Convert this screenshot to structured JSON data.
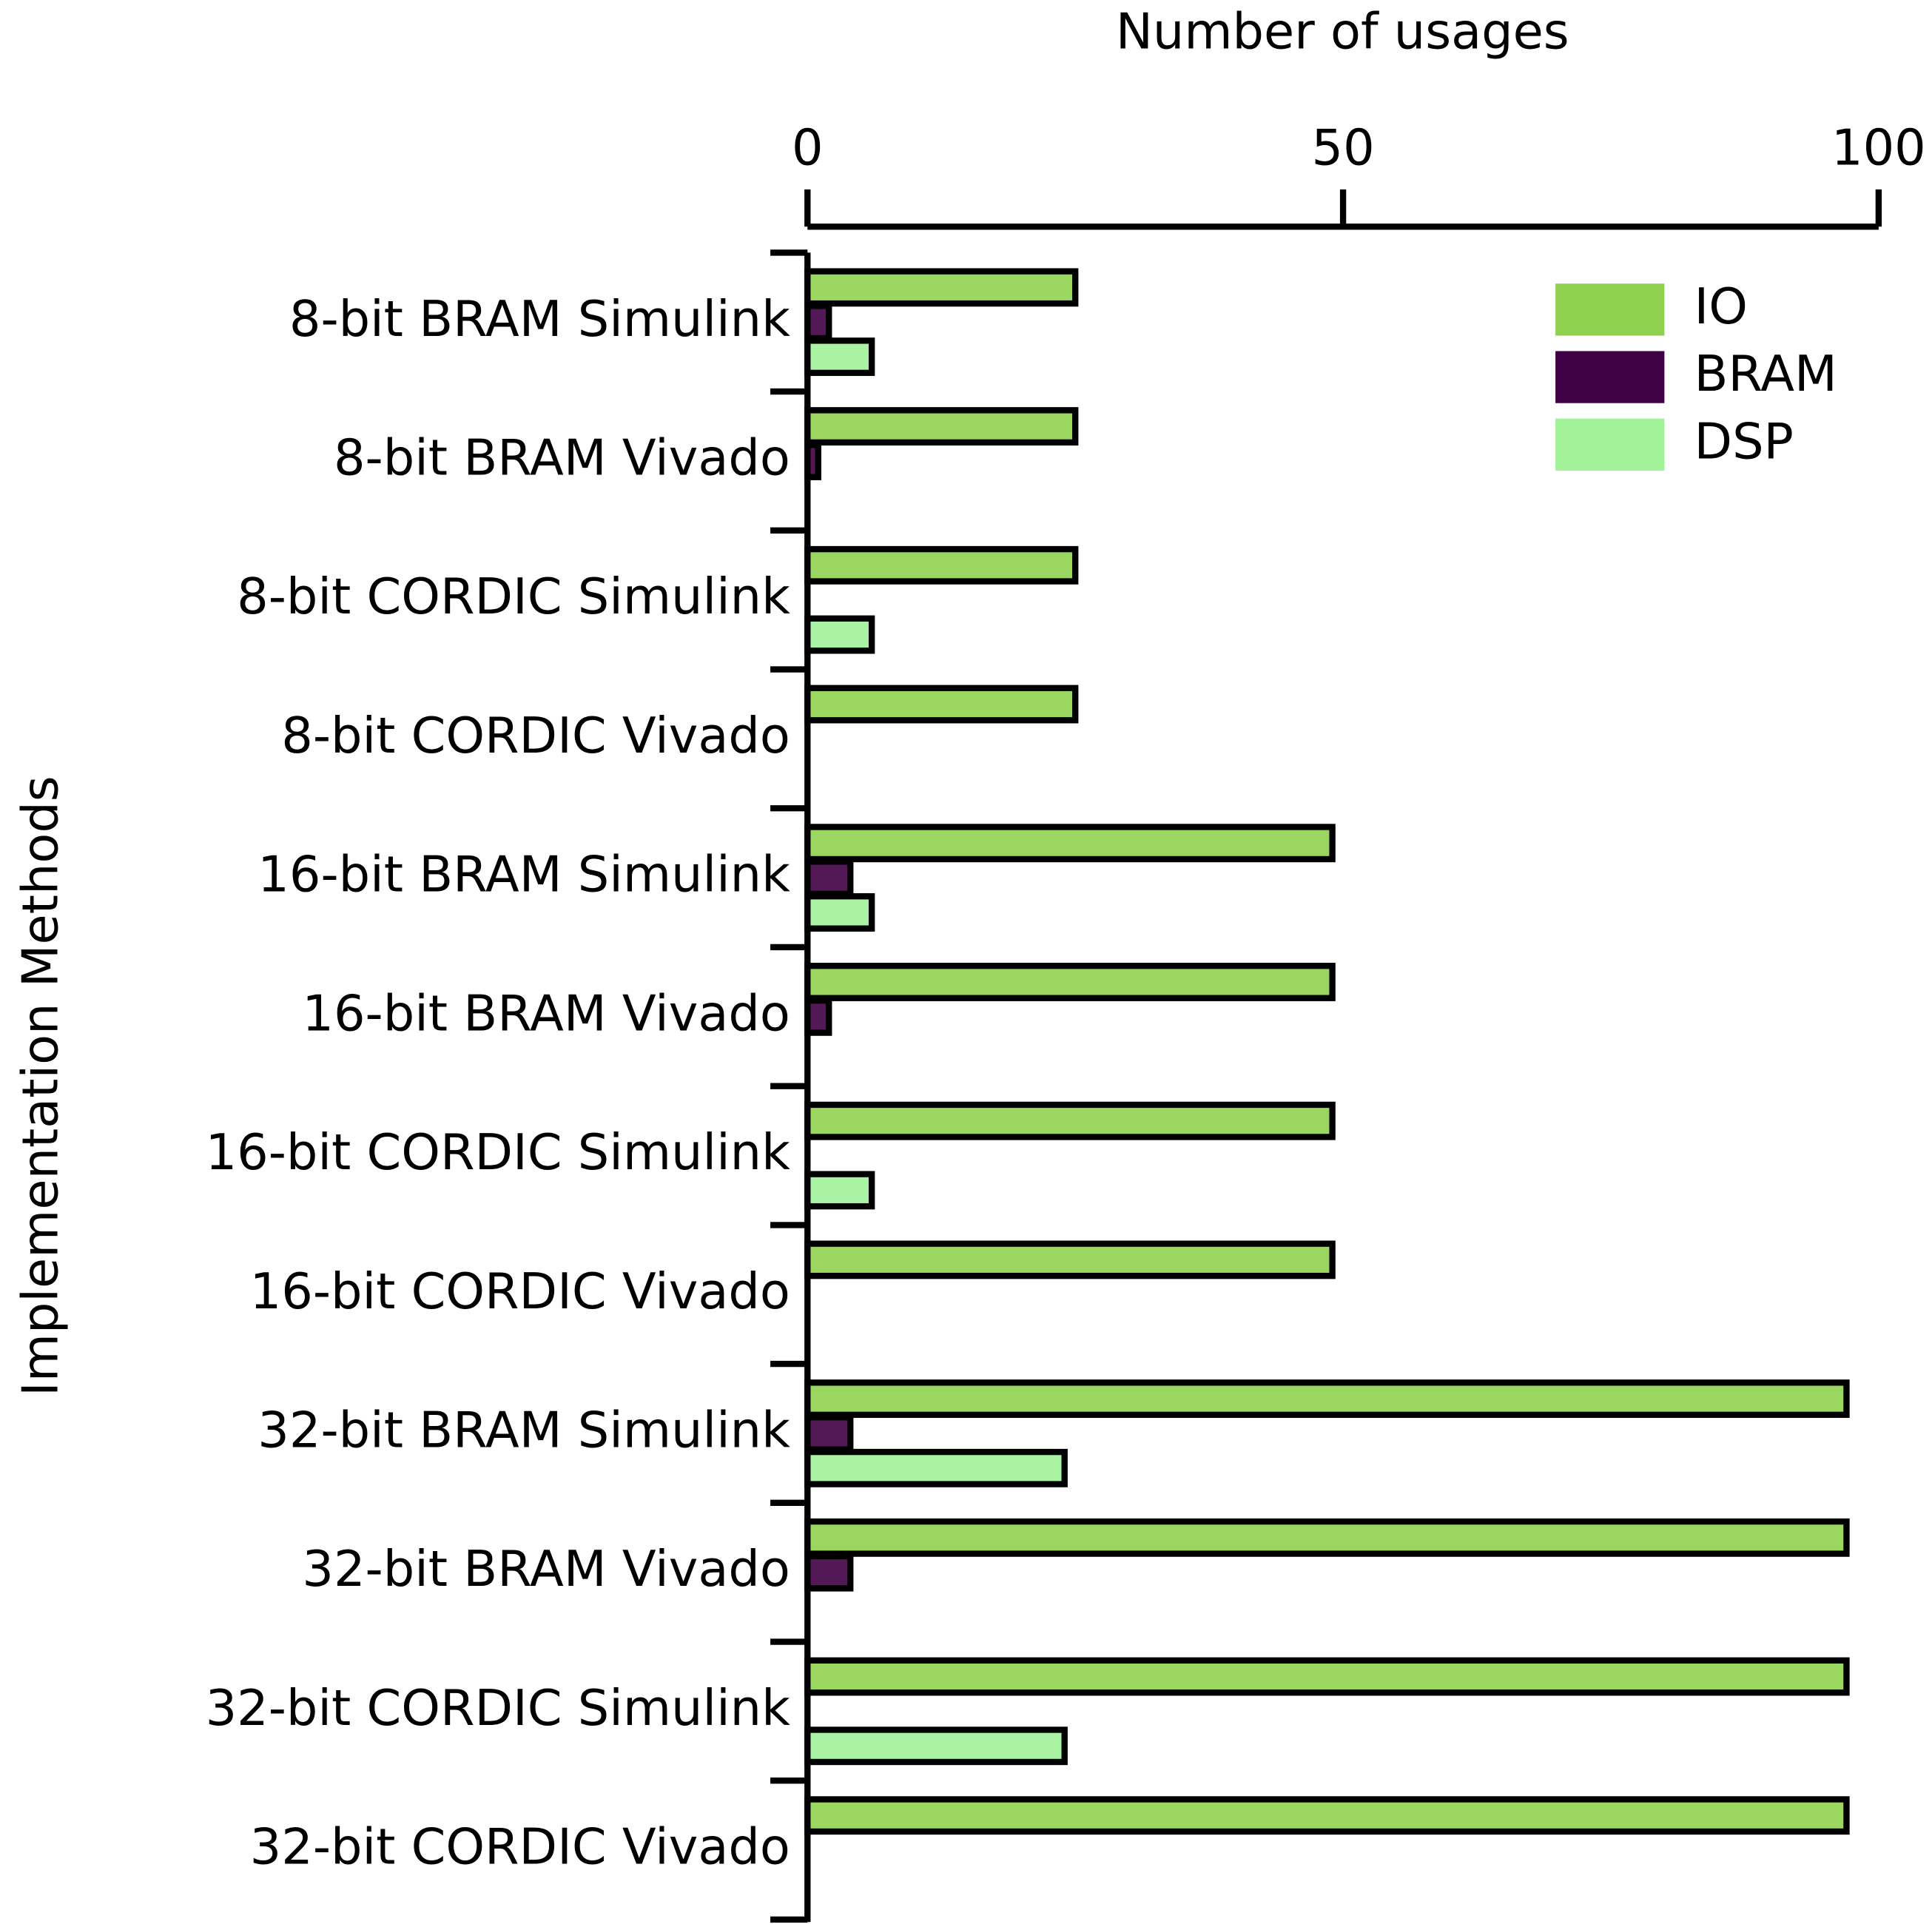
{
  "chart_data": {
    "type": "barh",
    "x_label": "Number of usages",
    "y_label": "Implementation Methods",
    "categories": [
      "8-bit BRAM Simulink",
      "8-bit BRAM Vivado",
      "8-bit CORDIC Simulink",
      "8-bit CORDIC Vivado",
      "16-bit BRAM Simulink",
      "16-bit BRAM Vivado",
      "16-bit CORDIC Simulink",
      "16-bit CORDIC Vivado",
      "32-bit BRAM Simulink",
      "32-bit BRAM Vivado",
      "32-bit CORDIC Simulink",
      "32-bit CORDIC Vivado"
    ],
    "series": [
      {
        "name": "IO",
        "color": "#8fd14f",
        "values": [
          25,
          25,
          25,
          25,
          49,
          49,
          49,
          49,
          97,
          97,
          97,
          97
        ]
      },
      {
        "name": "BRAM",
        "color": "#3f0044",
        "values": [
          2,
          1,
          0,
          0,
          4,
          2,
          0,
          0,
          4,
          4,
          0,
          0
        ]
      },
      {
        "name": "DSP",
        "color": "#a2f29a",
        "values": [
          6,
          0,
          6,
          0,
          6,
          0,
          6,
          0,
          24,
          0,
          24,
          0
        ]
      }
    ],
    "xlim": [
      0,
      100
    ],
    "xticks": [
      0,
      50,
      100
    ],
    "legend": "upper right"
  }
}
